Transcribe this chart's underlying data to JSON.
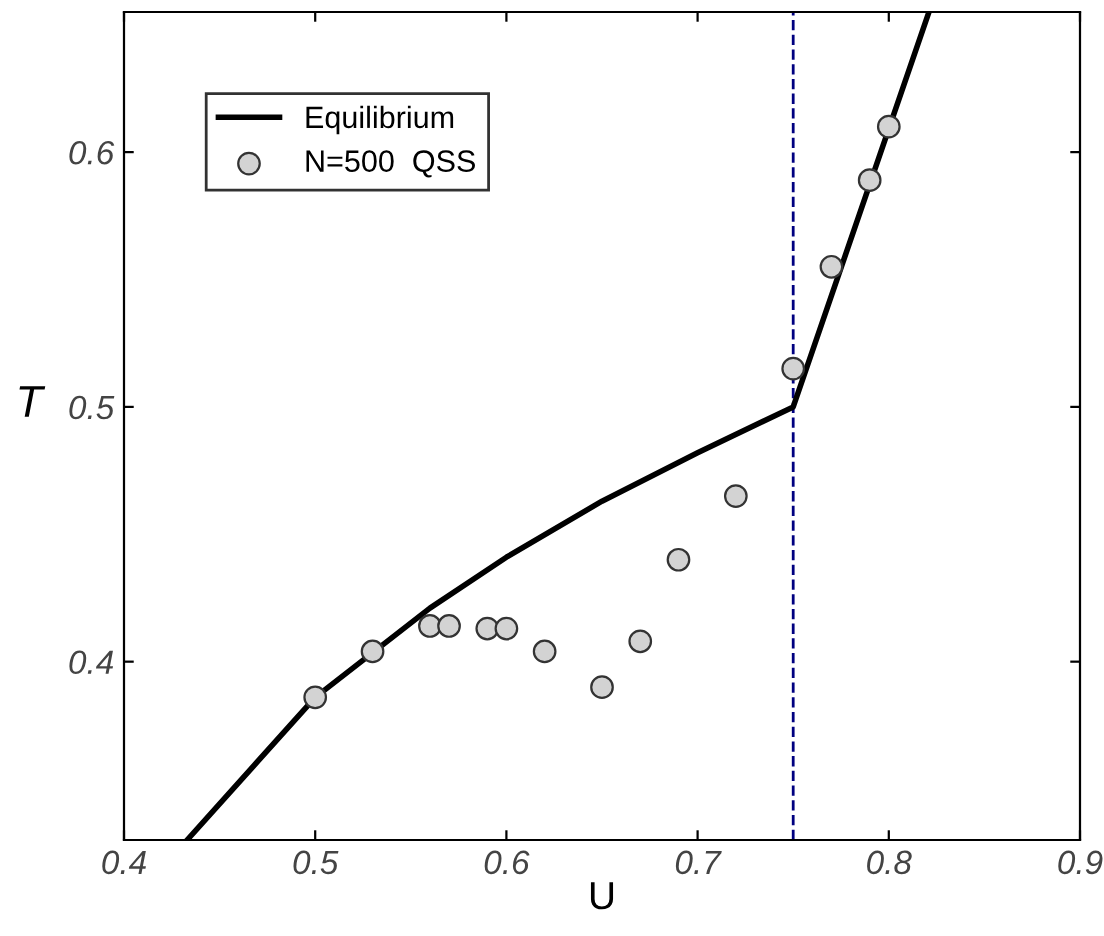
{
  "chart_data": {
    "type": "line",
    "xlabel": "U",
    "ylabel": "T",
    "xlim": [
      0.4,
      0.9
    ],
    "ylim": [
      0.33,
      0.655
    ],
    "xticks": [
      0.4,
      0.5,
      0.6,
      0.7,
      0.8,
      0.9
    ],
    "yticks": [
      0.4,
      0.5,
      0.6
    ],
    "grid": false,
    "legend": "top left",
    "series": [
      {
        "name": "Equilibrium",
        "color": "#000000",
        "marker": "none",
        "x": [
          0.433,
          0.5,
          0.56,
          0.6,
          0.65,
          0.7,
          0.75,
          0.821
        ],
        "values": [
          0.33,
          0.386,
          0.421,
          0.441,
          0.463,
          0.482,
          0.5,
          0.655
        ]
      },
      {
        "name": "N=500  QSS",
        "type": "scatter",
        "color": "#d3d3d3",
        "marker": "circle",
        "x": [
          0.5,
          0.53,
          0.56,
          0.57,
          0.59,
          0.6,
          0.62,
          0.65,
          0.67,
          0.69,
          0.72,
          0.75,
          0.77,
          0.79,
          0.8
        ],
        "values": [
          0.386,
          0.404,
          0.414,
          0.414,
          0.413,
          0.413,
          0.404,
          0.39,
          0.408,
          0.44,
          0.465,
          0.515,
          0.555,
          0.589,
          0.61
        ]
      }
    ],
    "ref_lines": [
      {
        "axis": "x",
        "value": 0.75,
        "color": "#000080",
        "line_style": "dashed"
      }
    ]
  }
}
